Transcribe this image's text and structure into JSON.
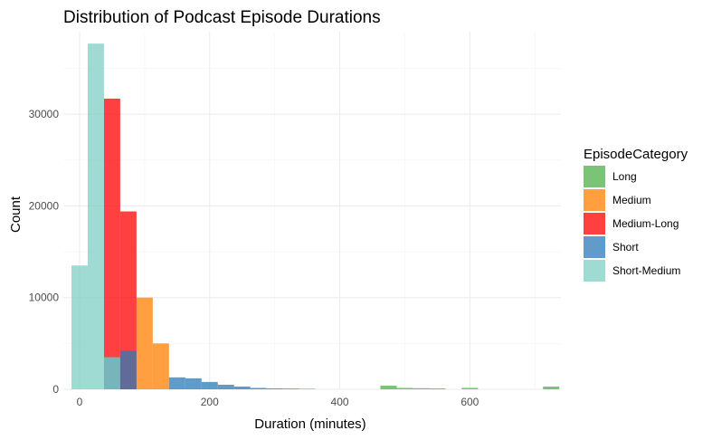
{
  "chart_data": {
    "type": "histogram",
    "title": "Distribution of Podcast Episode Durations",
    "xlabel": "Duration (minutes)",
    "ylabel": "Count",
    "xlim": [
      -25,
      740
    ],
    "ylim": [
      0,
      39000
    ],
    "x_ticks": [
      0,
      200,
      400,
      600
    ],
    "y_ticks": [
      0,
      10000,
      20000,
      30000
    ],
    "x_tick_labels": [
      "0",
      "200",
      "400",
      "600"
    ],
    "y_tick_labels": [
      "0",
      "10000",
      "20000",
      "30000"
    ],
    "grid": true,
    "legend": {
      "title": "EpisodeCategory",
      "position": "right"
    },
    "bin_width": 25,
    "series": [
      {
        "name": "Long",
        "color": "#4daf4a",
        "bins": [
          {
            "x0": 462.5,
            "x1": 487.5,
            "count": 400
          },
          {
            "x0": 487.5,
            "x1": 512.5,
            "count": 150
          },
          {
            "x0": 512.5,
            "x1": 537.5,
            "count": 120
          },
          {
            "x0": 537.5,
            "x1": 562.5,
            "count": 100
          },
          {
            "x0": 587.5,
            "x1": 612.5,
            "count": 150
          },
          {
            "x0": 712.5,
            "x1": 737.5,
            "count": 300
          }
        ]
      },
      {
        "name": "Medium",
        "color": "#ff7f00",
        "bins": [
          {
            "x0": 87.5,
            "x1": 112.5,
            "count": 10000
          },
          {
            "x0": 112.5,
            "x1": 137.5,
            "count": 5000
          }
        ]
      },
      {
        "name": "Medium-Long",
        "color": "#ff0000",
        "bins": [
          {
            "x0": 37.5,
            "x1": 62.5,
            "count": 31700
          },
          {
            "x0": 62.5,
            "x1": 87.5,
            "count": 19400
          }
        ]
      },
      {
        "name": "Short",
        "color": "#2b7ab8",
        "bins": [
          {
            "x0": 37.5,
            "x1": 62.5,
            "count": 3500
          },
          {
            "x0": 62.5,
            "x1": 87.5,
            "count": 4200
          },
          {
            "x0": 137.5,
            "x1": 162.5,
            "count": 1300
          },
          {
            "x0": 162.5,
            "x1": 187.5,
            "count": 1200
          },
          {
            "x0": 187.5,
            "x1": 212.5,
            "count": 800
          },
          {
            "x0": 212.5,
            "x1": 237.5,
            "count": 500
          },
          {
            "x0": 237.5,
            "x1": 262.5,
            "count": 300
          },
          {
            "x0": 262.5,
            "x1": 287.5,
            "count": 150
          },
          {
            "x0": 287.5,
            "x1": 312.5,
            "count": 100
          },
          {
            "x0": 312.5,
            "x1": 337.5,
            "count": 80
          },
          {
            "x0": 337.5,
            "x1": 362.5,
            "count": 50
          }
        ]
      },
      {
        "name": "Short-Medium",
        "color": "#7fcdc4",
        "bins": [
          {
            "x0": -12.5,
            "x1": 12.5,
            "count": 13500
          },
          {
            "x0": 12.5,
            "x1": 37.5,
            "count": 37700
          },
          {
            "x0": 37.5,
            "x1": 62.5,
            "count": 3500
          }
        ]
      }
    ],
    "opacity": 0.75
  }
}
